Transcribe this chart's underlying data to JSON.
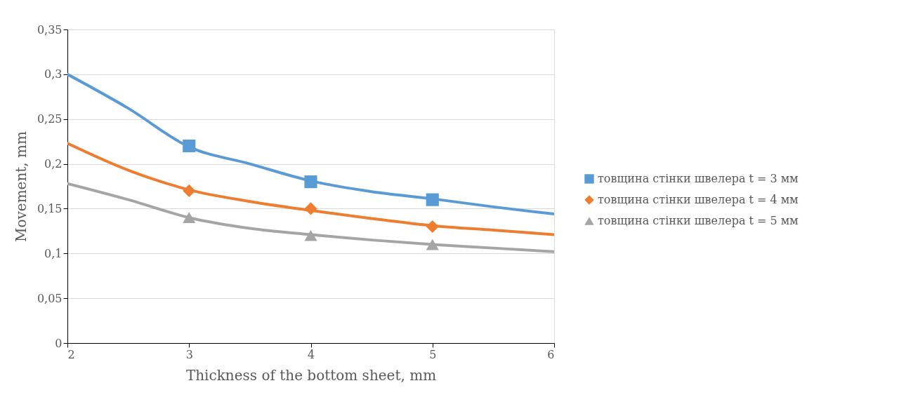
{
  "chart_data": {
    "type": "scatter",
    "xlabel": "Thickness of the bottom sheet, mm",
    "ylabel": "Movement, mm",
    "xlim": [
      2,
      6
    ],
    "xticks": [
      2,
      3,
      4,
      5,
      6
    ],
    "ylim": [
      0,
      0.35
    ],
    "yticks": [
      {
        "value": 0,
        "label": "0"
      },
      {
        "value": 0.05,
        "label": "0,05"
      },
      {
        "value": 0.1,
        "label": "0,1"
      },
      {
        "value": 0.15,
        "label": "0,15"
      },
      {
        "value": 0.2,
        "label": "0,2"
      },
      {
        "value": 0.25,
        "label": "0,25"
      },
      {
        "value": 0.3,
        "label": "0,3"
      },
      {
        "value": 0.35,
        "label": "0,35"
      }
    ],
    "grid": "y",
    "legend": "right",
    "series": [
      {
        "type": "line",
        "color": "#5b9bd5",
        "x": [
          2,
          2.5,
          3,
          3.5,
          4,
          4.5,
          5,
          5.5,
          6
        ],
        "values": [
          0.3,
          0.262,
          0.219,
          0.2,
          0.181,
          0.169,
          0.161,
          0.152,
          0.144
        ]
      },
      {
        "type": "line",
        "color": "#ed7d31",
        "x": [
          2,
          2.5,
          3,
          3.5,
          4,
          4.5,
          5,
          5.5,
          6
        ],
        "values": [
          0.223,
          0.193,
          0.171,
          0.158,
          0.148,
          0.139,
          0.131,
          0.126,
          0.121
        ]
      },
      {
        "type": "line",
        "color": "#a5a5a5",
        "x": [
          2,
          2.5,
          3,
          3.5,
          4,
          4.5,
          5,
          5.5,
          6
        ],
        "values": [
          0.178,
          0.16,
          0.14,
          0.128,
          0.121,
          0.115,
          0.11,
          0.106,
          0.102
        ]
      },
      {
        "name": "товщина стінки швелера t = 3 мм",
        "color": "#5b9bd5",
        "marker": "square",
        "x": [
          3,
          4,
          5
        ],
        "values": [
          0.22,
          0.18,
          0.16
        ]
      },
      {
        "name": "товщина стінки швелера t = 4 мм",
        "color": "#ed7d31",
        "marker": "diamond",
        "x": [
          3,
          4,
          5
        ],
        "values": [
          0.17,
          0.15,
          0.13
        ]
      },
      {
        "name": "товщина стінки швелера t = 5 мм",
        "color": "#a5a5a5",
        "marker": "triangle",
        "x": [
          3,
          4,
          5
        ],
        "values": [
          0.14,
          0.12,
          0.11
        ]
      }
    ]
  }
}
